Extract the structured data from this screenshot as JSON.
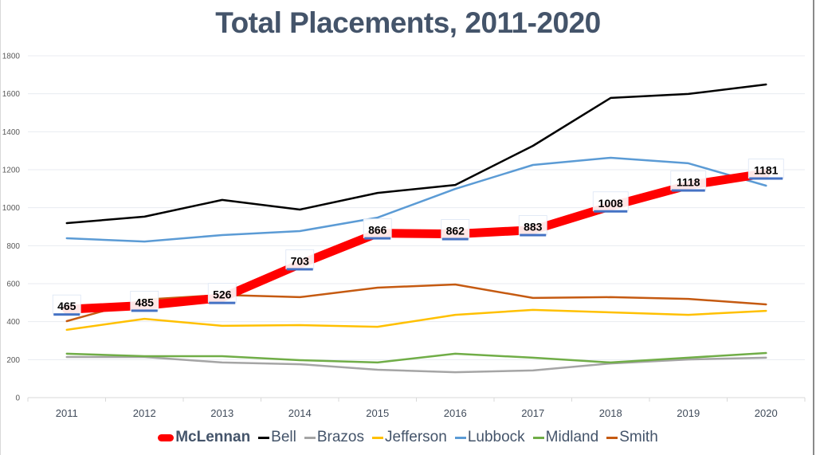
{
  "chart_data": {
    "type": "line",
    "title": "Total Placements, 2011-2020",
    "xlabel": "",
    "ylabel": "",
    "x": [
      "2011",
      "2012",
      "2013",
      "2014",
      "2015",
      "2016",
      "2017",
      "2018",
      "2019",
      "2020"
    ],
    "ylim": [
      0,
      1800
    ],
    "yticks": [
      0,
      200,
      400,
      600,
      800,
      1000,
      1200,
      1400,
      1600,
      1800
    ],
    "grid": true,
    "legend_position": "bottom",
    "series": [
      {
        "name": "McLennan",
        "color": "#ff0000",
        "emphasis": true,
        "values": [
          465,
          485,
          526,
          703,
          866,
          862,
          883,
          1008,
          1118,
          1181
        ],
        "data_labels": [
          "465",
          "485",
          "526",
          "703",
          "866",
          "862",
          "883",
          "1008",
          "1118",
          "1181"
        ]
      },
      {
        "name": "Bell",
        "color": "#000000",
        "values": [
          919,
          953,
          1041,
          990,
          1078,
          1120,
          1326,
          1578,
          1599,
          1649
        ]
      },
      {
        "name": "Brazos",
        "color": "#a5a5a5",
        "values": [
          214,
          214,
          185,
          176,
          147,
          134,
          143,
          180,
          201,
          210
        ]
      },
      {
        "name": "Jefferson",
        "color": "#ffc000",
        "values": [
          357,
          415,
          378,
          382,
          373,
          436,
          462,
          449,
          436,
          457
        ]
      },
      {
        "name": "Lubbock",
        "color": "#5b9bd5",
        "values": [
          839,
          822,
          856,
          877,
          948,
          1099,
          1225,
          1263,
          1234,
          1116
        ]
      },
      {
        "name": "Midland",
        "color": "#70ad47",
        "values": [
          231,
          218,
          218,
          197,
          185,
          231,
          210,
          185,
          210,
          235
        ]
      },
      {
        "name": "Smith",
        "color": "#c55a11",
        "values": [
          403,
          516,
          541,
          529,
          579,
          596,
          525,
          529,
          520,
          491
        ]
      }
    ]
  }
}
